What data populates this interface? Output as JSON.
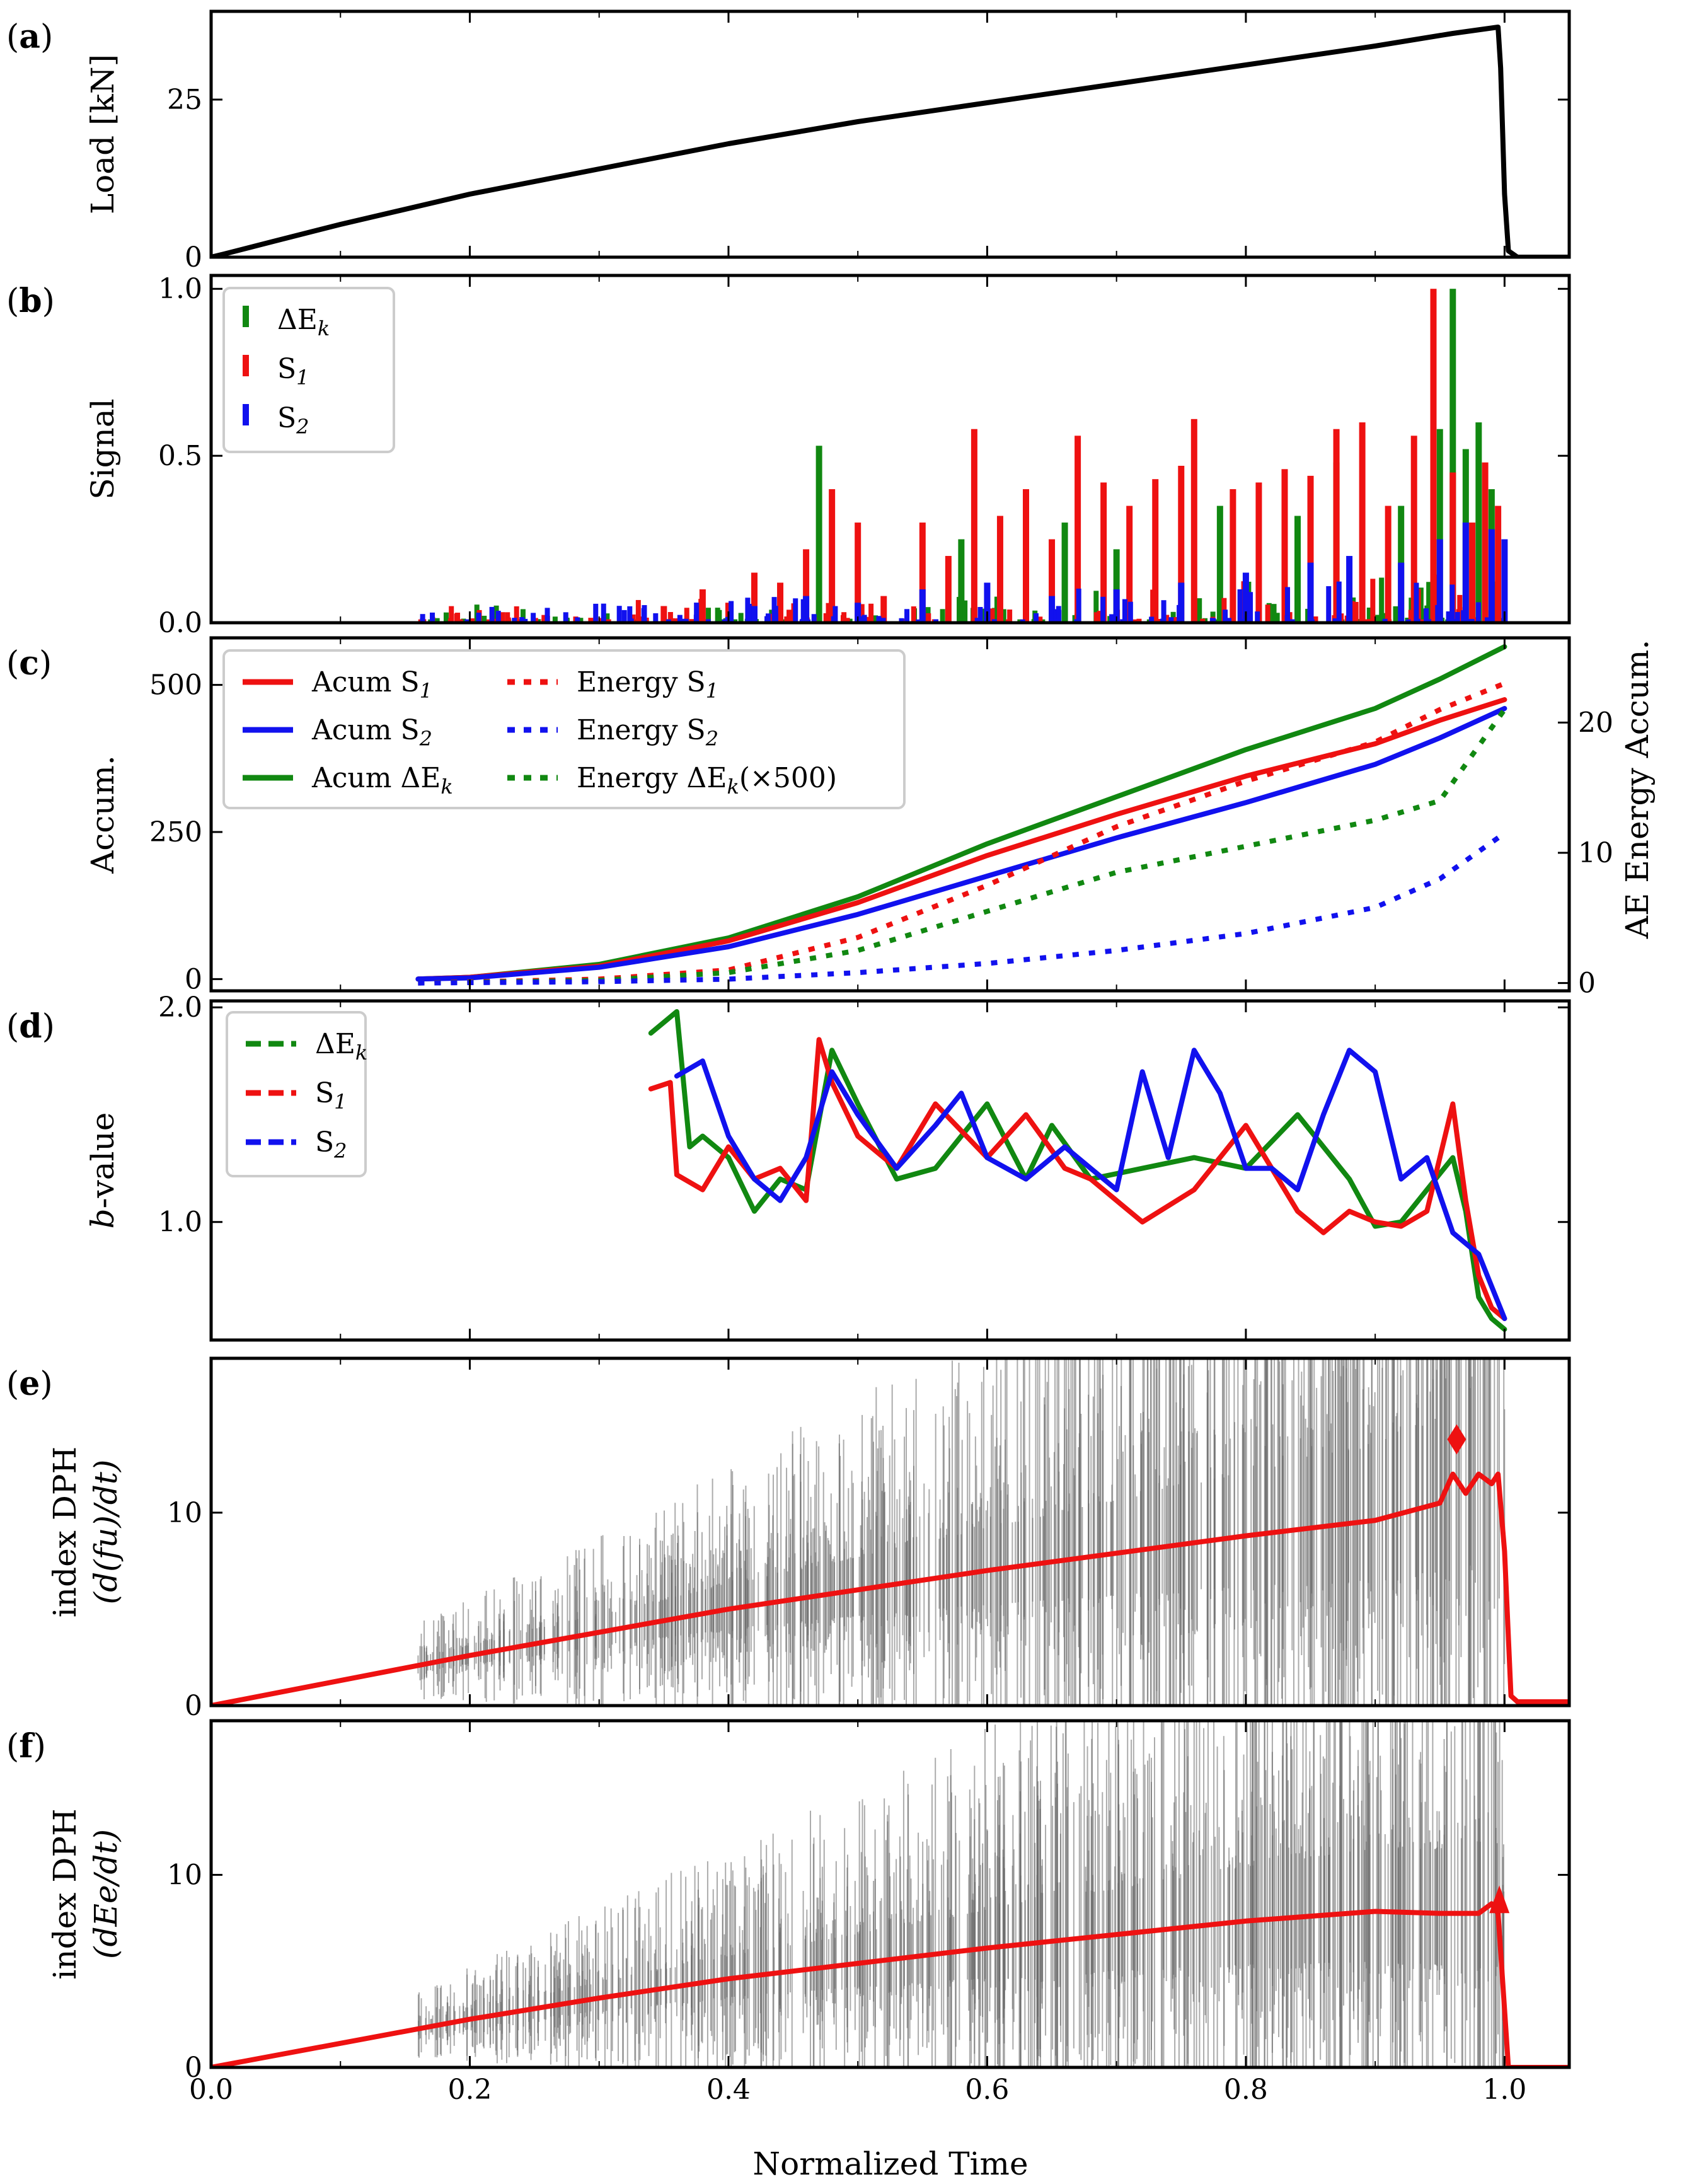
{
  "figure": {
    "xlabel": "Normalized Time",
    "xlim": [
      0.0,
      1.05
    ],
    "xticks": [
      0.0,
      0.2,
      0.4,
      0.6,
      0.8,
      1.0
    ],
    "xtick_labels": [
      "0.0",
      "0.2",
      "0.4",
      "0.6",
      "0.8",
      "1.0"
    ]
  },
  "colors": {
    "black": "#000000",
    "red": "#ee1111",
    "blue": "#1111ee",
    "green": "#118811",
    "gray": "#666666"
  },
  "chart_data": [
    {
      "id": "a",
      "tag_open": "(",
      "tag_letter": "a",
      "tag_close": ")",
      "type": "line",
      "ylabel": "Load [kN]",
      "ylim": [
        0,
        39
      ],
      "yticks": [
        0,
        25
      ],
      "ytick_labels": [
        "0",
        "25"
      ],
      "series": [
        {
          "name": "Load",
          "color": "#000000",
          "style": "solid",
          "x": [
            0,
            0.01,
            0.05,
            0.1,
            0.2,
            0.3,
            0.4,
            0.5,
            0.6,
            0.7,
            0.8,
            0.9,
            0.96,
            0.995,
            0.997,
            1.0,
            1.003,
            1.01,
            1.05
          ],
          "y": [
            0,
            0.5,
            2.6,
            5.2,
            10,
            14,
            18,
            21.5,
            24.5,
            27.5,
            30.5,
            33.5,
            35.5,
            36.5,
            30,
            10,
            1,
            0,
            0
          ]
        }
      ]
    },
    {
      "id": "b",
      "tag_open": "(",
      "tag_letter": "b",
      "tag_close": ")",
      "type": "bar",
      "ylabel": "Signal",
      "ylim": [
        0,
        1.04
      ],
      "yticks": [
        0.0,
        0.5,
        1.0
      ],
      "ytick_labels": [
        "0.0",
        "0.5",
        "1.0"
      ],
      "legend": {
        "position": "top-left",
        "entries": [
          {
            "label": "ΔE",
            "sub": "k",
            "color": "#118811"
          },
          {
            "label": "S",
            "sub": "1",
            "color": "#ee1111"
          },
          {
            "label": "S",
            "sub": "2",
            "color": "#1111ee"
          }
        ]
      },
      "series": [
        {
          "name": "ΔE_k",
          "color": "#118811",
          "x": [
            0.47,
            0.58,
            0.66,
            0.7,
            0.78,
            0.84,
            0.87,
            0.92,
            0.95,
            0.96,
            0.97,
            0.98,
            0.99
          ],
          "y": [
            0.53,
            0.25,
            0.3,
            0.22,
            0.35,
            0.32,
            0.48,
            0.35,
            0.58,
            1.0,
            0.52,
            0.6,
            0.4
          ]
        },
        {
          "name": "S_1",
          "color": "#ee1111",
          "x": [
            0.35,
            0.38,
            0.4,
            0.42,
            0.44,
            0.46,
            0.48,
            0.5,
            0.52,
            0.55,
            0.57,
            0.59,
            0.61,
            0.63,
            0.65,
            0.67,
            0.69,
            0.71,
            0.73,
            0.75,
            0.76,
            0.79,
            0.81,
            0.83,
            0.85,
            0.87,
            0.89,
            0.91,
            0.93,
            0.945,
            0.96,
            0.975,
            0.985,
            0.995
          ],
          "y": [
            0.05,
            0.1,
            0.06,
            0.15,
            0.12,
            0.22,
            0.4,
            0.3,
            0.08,
            0.3,
            0.2,
            0.58,
            0.32,
            0.4,
            0.25,
            0.56,
            0.42,
            0.35,
            0.43,
            0.47,
            0.61,
            0.4,
            0.42,
            0.46,
            0.44,
            0.58,
            0.6,
            0.35,
            0.56,
            1.0,
            0.45,
            0.3,
            0.48,
            0.35
          ]
        },
        {
          "name": "S_2",
          "color": "#1111ee",
          "x": [
            0.42,
            0.46,
            0.5,
            0.55,
            0.6,
            0.65,
            0.7,
            0.75,
            0.8,
            0.85,
            0.88,
            0.92,
            0.95,
            0.97,
            0.99,
            1.0
          ],
          "y": [
            0.05,
            0.08,
            0.06,
            0.1,
            0.12,
            0.08,
            0.1,
            0.12,
            0.15,
            0.18,
            0.2,
            0.18,
            0.25,
            0.3,
            0.28,
            0.25
          ]
        }
      ]
    },
    {
      "id": "c",
      "tag_open": "(",
      "tag_letter": "c",
      "tag_close": ")",
      "type": "line",
      "ylabel": "Accum.",
      "ylabel_right": "AE Energy Accum.",
      "ylim": [
        -20,
        580
      ],
      "yticks": [
        0,
        250,
        500
      ],
      "ytick_labels": [
        "0",
        "250",
        "500"
      ],
      "ylim_right": [
        -0.6,
        26.5
      ],
      "yticks_right": [
        0,
        10,
        20
      ],
      "ytick_labels_right": [
        "0",
        "10",
        "20"
      ],
      "legend": {
        "position": "top-left",
        "entries": [
          {
            "label": "Acum S",
            "sub": "1",
            "color": "#ee1111",
            "style": "solid"
          },
          {
            "label": "Acum S",
            "sub": "2",
            "color": "#1111ee",
            "style": "solid"
          },
          {
            "label": "Acum ΔE",
            "sub": "k",
            "color": "#118811",
            "style": "solid"
          },
          {
            "label": "Energy S",
            "sub": "1",
            "color": "#ee1111",
            "style": "dotted"
          },
          {
            "label": "Energy S",
            "sub": "2",
            "color": "#1111ee",
            "style": "dotted"
          },
          {
            "label": "Energy ΔE",
            "sub": "k",
            "after": "(×500)",
            "color": "#118811",
            "style": "dotted"
          }
        ]
      },
      "series": [
        {
          "name": "Acum ΔE_k",
          "color": "#118811",
          "style": "solid",
          "axis": "left",
          "x": [
            0.16,
            0.2,
            0.3,
            0.4,
            0.5,
            0.6,
            0.7,
            0.8,
            0.9,
            0.95,
            1.0
          ],
          "y": [
            0,
            3,
            25,
            70,
            140,
            230,
            310,
            390,
            460,
            510,
            565
          ]
        },
        {
          "name": "Acum S_1",
          "color": "#ee1111",
          "style": "solid",
          "axis": "left",
          "x": [
            0.16,
            0.2,
            0.3,
            0.4,
            0.5,
            0.6,
            0.7,
            0.8,
            0.9,
            0.95,
            1.0
          ],
          "y": [
            0,
            3,
            22,
            65,
            130,
            210,
            280,
            345,
            400,
            440,
            475
          ]
        },
        {
          "name": "Acum S_2",
          "color": "#1111ee",
          "style": "solid",
          "axis": "left",
          "x": [
            0.16,
            0.2,
            0.3,
            0.4,
            0.5,
            0.6,
            0.7,
            0.8,
            0.9,
            0.95,
            1.0
          ],
          "y": [
            0,
            2,
            20,
            55,
            110,
            175,
            240,
            300,
            365,
            410,
            460
          ]
        },
        {
          "name": "Energy S_1",
          "color": "#ee1111",
          "style": "dotted",
          "axis": "right",
          "x": [
            0.16,
            0.3,
            0.4,
            0.5,
            0.6,
            0.7,
            0.8,
            0.9,
            0.95,
            1.0
          ],
          "y": [
            0,
            0.3,
            1.0,
            3.5,
            7.5,
            12,
            15.5,
            18.5,
            21,
            23
          ]
        },
        {
          "name": "Energy ΔE_k (×500)",
          "color": "#118811",
          "style": "dotted",
          "axis": "right",
          "x": [
            0.16,
            0.3,
            0.4,
            0.5,
            0.6,
            0.7,
            0.8,
            0.9,
            0.95,
            1.0
          ],
          "y": [
            0,
            0.2,
            0.8,
            2.5,
            5.5,
            8.5,
            10.5,
            12.5,
            14,
            21
          ]
        },
        {
          "name": "Energy S_2",
          "color": "#1111ee",
          "style": "dotted",
          "axis": "right",
          "x": [
            0.16,
            0.3,
            0.4,
            0.5,
            0.6,
            0.7,
            0.8,
            0.9,
            0.95,
            1.0
          ],
          "y": [
            0,
            0.1,
            0.3,
            0.8,
            1.5,
            2.5,
            3.8,
            5.8,
            8.0,
            11.5
          ]
        }
      ]
    },
    {
      "id": "d",
      "tag_open": "(",
      "tag_letter": "d",
      "tag_close": ")",
      "type": "line",
      "ylabel_pre": "b",
      "ylabel_post": "-value",
      "ylim": [
        0.45,
        2.03
      ],
      "yticks": [
        1.0,
        2.0
      ],
      "ytick_labels": [
        "1.0",
        "2.0"
      ],
      "legend": {
        "position": "top-left",
        "entries": [
          {
            "label": "ΔE",
            "sub": "k",
            "color": "#118811",
            "style": "dashed"
          },
          {
            "label": "S",
            "sub": "1",
            "color": "#ee1111",
            "style": "dashed"
          },
          {
            "label": "S",
            "sub": "2",
            "color": "#1111ee",
            "style": "dashed"
          }
        ]
      },
      "series": [
        {
          "name": "ΔE_k",
          "color": "#118811",
          "style": "solid",
          "x": [
            0.34,
            0.36,
            0.37,
            0.38,
            0.4,
            0.42,
            0.44,
            0.46,
            0.48,
            0.5,
            0.53,
            0.56,
            0.6,
            0.63,
            0.65,
            0.68,
            0.72,
            0.76,
            0.8,
            0.84,
            0.88,
            0.9,
            0.92,
            0.94,
            0.96,
            0.97,
            0.98,
            0.99,
            1.0
          ],
          "y": [
            1.88,
            1.98,
            1.35,
            1.4,
            1.3,
            1.05,
            1.2,
            1.15,
            1.8,
            1.55,
            1.2,
            1.25,
            1.55,
            1.2,
            1.45,
            1.2,
            1.25,
            1.3,
            1.25,
            1.5,
            1.2,
            0.98,
            1.0,
            1.15,
            1.3,
            1.05,
            0.65,
            0.55,
            0.5
          ]
        },
        {
          "name": "S_1",
          "color": "#ee1111",
          "style": "solid",
          "x": [
            0.34,
            0.355,
            0.36,
            0.38,
            0.4,
            0.42,
            0.44,
            0.46,
            0.47,
            0.48,
            0.5,
            0.53,
            0.56,
            0.6,
            0.63,
            0.66,
            0.68,
            0.72,
            0.76,
            0.8,
            0.84,
            0.86,
            0.88,
            0.9,
            0.92,
            0.94,
            0.96,
            0.97,
            0.98,
            0.99,
            1.0
          ],
          "y": [
            1.62,
            1.65,
            1.22,
            1.15,
            1.35,
            1.2,
            1.25,
            1.1,
            1.85,
            1.65,
            1.4,
            1.25,
            1.55,
            1.3,
            1.5,
            1.25,
            1.2,
            1.0,
            1.15,
            1.45,
            1.05,
            0.95,
            1.05,
            1.0,
            0.98,
            1.05,
            1.55,
            1.1,
            0.75,
            0.6,
            0.55
          ]
        },
        {
          "name": "S_2",
          "color": "#1111ee",
          "style": "solid",
          "x": [
            0.36,
            0.38,
            0.4,
            0.42,
            0.44,
            0.46,
            0.48,
            0.5,
            0.53,
            0.56,
            0.58,
            0.6,
            0.63,
            0.66,
            0.68,
            0.7,
            0.72,
            0.74,
            0.76,
            0.78,
            0.8,
            0.82,
            0.84,
            0.86,
            0.88,
            0.9,
            0.92,
            0.94,
            0.96,
            0.98,
            1.0
          ],
          "y": [
            1.68,
            1.75,
            1.4,
            1.2,
            1.1,
            1.3,
            1.7,
            1.5,
            1.25,
            1.45,
            1.6,
            1.3,
            1.2,
            1.35,
            1.25,
            1.15,
            1.7,
            1.3,
            1.8,
            1.6,
            1.25,
            1.25,
            1.15,
            1.5,
            1.8,
            1.7,
            1.2,
            1.3,
            0.95,
            0.85,
            0.55
          ]
        }
      ]
    },
    {
      "id": "e",
      "tag_open": "(",
      "tag_letter": "e",
      "tag_close": ")",
      "type": "line",
      "ylabel_line1": "index DPH",
      "ylabel_line2": "(d(fu)/dt)",
      "ylim": [
        0,
        18
      ],
      "yticks": [
        0,
        10
      ],
      "ytick_labels": [
        "0",
        "10"
      ],
      "noise": {
        "color": "#666666",
        "onset": 0.16,
        "end": 1.0,
        "count": 900
      },
      "series": [
        {
          "name": "index DPH",
          "color": "#ee1111",
          "style": "solid",
          "x": [
            0,
            0.1,
            0.2,
            0.3,
            0.4,
            0.5,
            0.6,
            0.7,
            0.8,
            0.9,
            0.95,
            0.96,
            0.97,
            0.98,
            0.99,
            0.995,
            1.0,
            1.005,
            1.01,
            1.05
          ],
          "y": [
            0,
            1.3,
            2.6,
            3.8,
            5.0,
            6.0,
            7.0,
            7.9,
            8.8,
            9.6,
            10.5,
            12.0,
            11.0,
            12.0,
            11.5,
            12.0,
            8.0,
            0.5,
            0.2,
            0.2
          ]
        }
      ],
      "marker": {
        "x": 0.963,
        "y": 13.8,
        "color": "#ee1111",
        "shape": "diamond"
      }
    },
    {
      "id": "f",
      "tag_open": "(",
      "tag_letter": "f",
      "tag_close": ")",
      "type": "line",
      "ylabel_line1": "index DPH",
      "ylabel_line2": "(dEe/dt)",
      "ylim": [
        0,
        18
      ],
      "yticks": [
        0,
        10
      ],
      "ytick_labels": [
        "0",
        "10"
      ],
      "noise": {
        "color": "#666666",
        "onset": 0.16,
        "end": 1.0,
        "count": 900
      },
      "series": [
        {
          "name": "index DPH",
          "color": "#ee1111",
          "style": "solid",
          "x": [
            0,
            0.1,
            0.2,
            0.3,
            0.4,
            0.5,
            0.6,
            0.7,
            0.8,
            0.9,
            0.95,
            0.98,
            0.99,
            0.995,
            1.0,
            1.003,
            1.01,
            1.05
          ],
          "y": [
            0,
            1.25,
            2.5,
            3.6,
            4.6,
            5.4,
            6.2,
            6.9,
            7.6,
            8.1,
            8.0,
            8.0,
            8.5,
            8.0,
            3.0,
            0,
            0,
            0
          ]
        }
      ],
      "marker": {
        "x": 0.996,
        "y": 8.6,
        "color": "#ee1111",
        "shape": "triangle"
      }
    }
  ]
}
